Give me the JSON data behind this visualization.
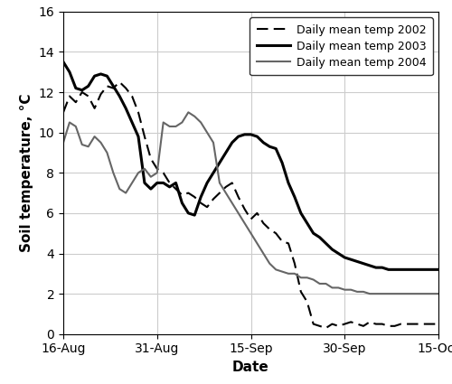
{
  "title": "",
  "xlabel": "Date",
  "ylabel": "Soil temperature, °C",
  "ylim": [
    0,
    16
  ],
  "yticks": [
    0,
    2,
    4,
    6,
    8,
    10,
    12,
    14,
    16
  ],
  "background_color": "#ffffff",
  "grid_color": "#cccccc",
  "legend_labels": [
    "Daily mean temp 2002",
    "Daily mean temp 2003",
    "Daily mean temp 2004"
  ],
  "series_2002_values": [
    11.0,
    11.8,
    11.5,
    12.0,
    11.8,
    11.2,
    11.9,
    12.3,
    12.2,
    12.5,
    12.2,
    11.8,
    11.0,
    9.8,
    8.7,
    8.2,
    8.0,
    7.5,
    7.2,
    6.9,
    7.0,
    6.8,
    6.5,
    6.3,
    6.7,
    7.0,
    7.3,
    7.5,
    6.8,
    6.2,
    5.7,
    6.0,
    5.5,
    5.2,
    5.0,
    4.6,
    4.5,
    3.5,
    2.1,
    1.6,
    0.5,
    0.4,
    0.3,
    0.5,
    0.4,
    0.5,
    0.6,
    0.5,
    0.4,
    0.6,
    0.5,
    0.5,
    0.4,
    0.4,
    0.5,
    0.5,
    0.5,
    0.5,
    0.5,
    0.5,
    0.5
  ],
  "series_2003_values": [
    13.5,
    13.0,
    12.2,
    12.1,
    12.3,
    12.8,
    12.9,
    12.8,
    12.3,
    11.8,
    11.2,
    10.5,
    9.8,
    7.5,
    7.2,
    7.5,
    7.5,
    7.3,
    7.5,
    6.5,
    6.0,
    5.9,
    6.8,
    7.5,
    8.0,
    8.5,
    9.0,
    9.5,
    9.8,
    9.9,
    9.9,
    9.8,
    9.5,
    9.3,
    9.2,
    8.5,
    7.5,
    6.8,
    6.0,
    5.5,
    5.0,
    4.8,
    4.5,
    4.2,
    4.0,
    3.8,
    3.7,
    3.6,
    3.5,
    3.4,
    3.3,
    3.3,
    3.2,
    3.2,
    3.2,
    3.2,
    3.2,
    3.2,
    3.2,
    3.2,
    3.2
  ],
  "series_2004_values": [
    9.5,
    10.5,
    10.3,
    9.4,
    9.3,
    9.8,
    9.5,
    9.0,
    8.0,
    7.2,
    7.0,
    7.5,
    8.0,
    8.2,
    7.8,
    8.0,
    10.5,
    10.3,
    10.3,
    10.5,
    11.0,
    10.8,
    10.5,
    10.0,
    9.5,
    7.5,
    7.0,
    6.5,
    6.0,
    5.5,
    5.0,
    4.5,
    4.0,
    3.5,
    3.2,
    3.1,
    3.0,
    3.0,
    2.8,
    2.8,
    2.7,
    2.5,
    2.5,
    2.3,
    2.3,
    2.2,
    2.2,
    2.1,
    2.1,
    2.0,
    2.0,
    2.0,
    2.0,
    2.0,
    2.0,
    2.0,
    2.0,
    2.0,
    2.0,
    2.0,
    2.0
  ],
  "xtick_labels": [
    "16-Aug",
    "31-Aug",
    "15-Sep",
    "30-Sep",
    "15-Oct"
  ],
  "xtick_offsets": [
    0,
    15,
    30,
    45,
    60
  ],
  "color_2002": "#000000",
  "color_2003": "#000000",
  "color_2004": "#666666",
  "lw_2002": 1.5,
  "lw_2003": 2.2,
  "lw_2004": 1.5,
  "tick_fontsize": 10,
  "label_fontsize": 11,
  "legend_fontsize": 9
}
